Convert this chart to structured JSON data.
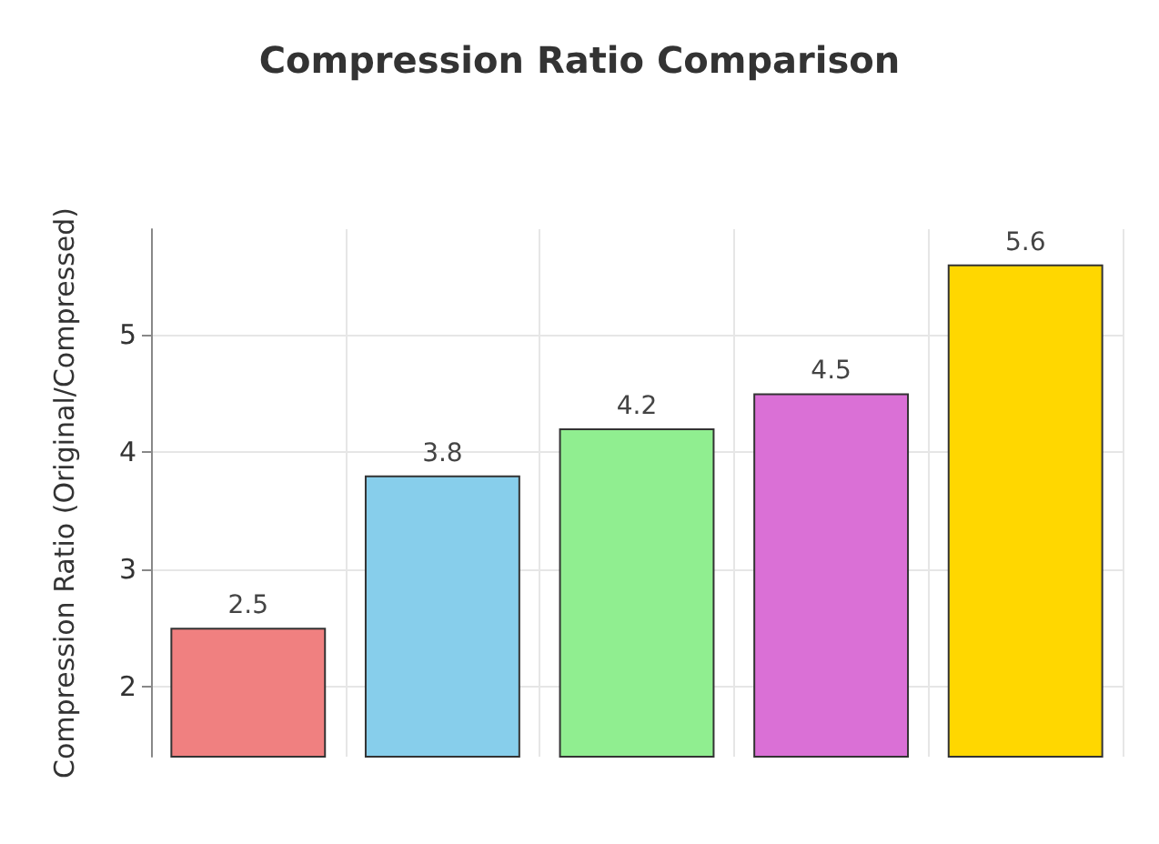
{
  "chart_data": {
    "type": "bar",
    "title": "Compression Ratio Comparison",
    "ylabel": "Compression Ratio (Original/Compressed)",
    "categories": [
      null,
      null,
      null,
      null,
      null
    ],
    "values": [
      2.5,
      3.8,
      4.2,
      4.5,
      5.6
    ],
    "colors": [
      "#f08080",
      "#87ceeb",
      "#90ee90",
      "#da70d6",
      "#ffd700"
    ],
    "ylim": [
      1.4,
      5.9
    ],
    "yticks": [
      2,
      3,
      4,
      5
    ],
    "grid": true,
    "data_labels": true
  }
}
